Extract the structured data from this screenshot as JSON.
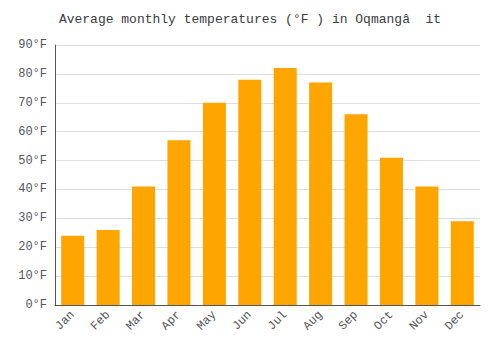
{
  "chart_data": {
    "type": "bar",
    "title": "Average monthly temperatures (°F ) in Oqmangâ  it",
    "categories": [
      "Jan",
      "Feb",
      "Mar",
      "Apr",
      "May",
      "Jun",
      "Jul",
      "Aug",
      "Sep",
      "Oct",
      "Nov",
      "Dec"
    ],
    "values": [
      24,
      26,
      41,
      57,
      70,
      78,
      82,
      77,
      66,
      51,
      41,
      29
    ],
    "color": "#FFA500",
    "ylim": [
      0,
      90
    ],
    "yticks": [
      {
        "value": 0,
        "label": "0°F"
      },
      {
        "value": 10,
        "label": "10°F"
      },
      {
        "value": 20,
        "label": "20°F"
      },
      {
        "value": 30,
        "label": "30°F"
      },
      {
        "value": 40,
        "label": "40°F"
      },
      {
        "value": 50,
        "label": "50°F"
      },
      {
        "value": 60,
        "label": "60°F"
      },
      {
        "value": 70,
        "label": "70°F"
      },
      {
        "value": 80,
        "label": "80°F"
      },
      {
        "value": 90,
        "label": "90°F"
      }
    ],
    "grid": true
  }
}
